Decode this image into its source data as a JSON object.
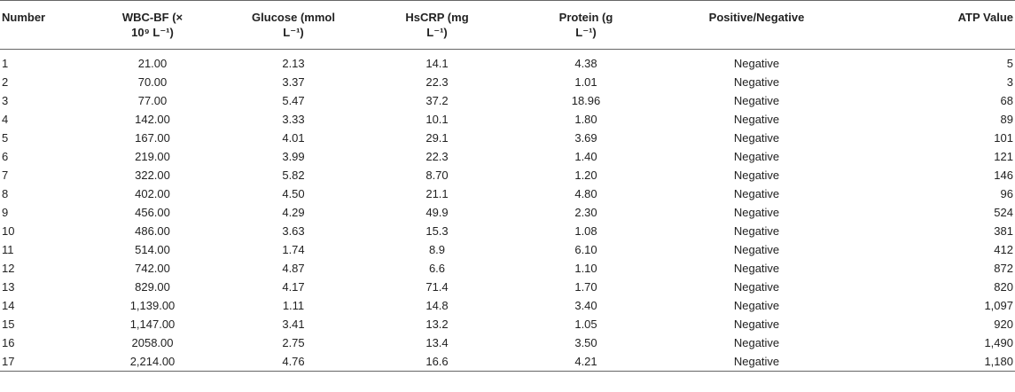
{
  "table": {
    "headers": [
      {
        "line1": "Number",
        "line2": ""
      },
      {
        "line1": "WBC-BF (×",
        "line2": "10⁹ L⁻¹)"
      },
      {
        "line1": "Glucose (mmol",
        "line2": "L⁻¹)"
      },
      {
        "line1": "HsCRP (mg",
        "line2": "L⁻¹)"
      },
      {
        "line1": "Protein (g",
        "line2": "L⁻¹)"
      },
      {
        "line1": "Positive/Negative",
        "line2": ""
      },
      {
        "line1": "ATP Value",
        "line2": ""
      }
    ],
    "rows": [
      [
        "1",
        "21.00",
        "2.13",
        "14.1",
        "4.38",
        "Negative",
        "5"
      ],
      [
        "2",
        "70.00",
        "3.37",
        "22.3",
        "1.01",
        "Negative",
        "3"
      ],
      [
        "3",
        "77.00",
        "5.47",
        "37.2",
        "18.96",
        "Negative",
        "68"
      ],
      [
        "4",
        "142.00",
        "3.33",
        "10.1",
        "1.80",
        "Negative",
        "89"
      ],
      [
        "5",
        "167.00",
        "4.01",
        "29.1",
        "3.69",
        "Negative",
        "101"
      ],
      [
        "6",
        "219.00",
        "3.99",
        "22.3",
        "1.40",
        "Negative",
        "121"
      ],
      [
        "7",
        "322.00",
        "5.82",
        "8.70",
        "1.20",
        "Negative",
        "146"
      ],
      [
        "8",
        "402.00",
        "4.50",
        "21.1",
        "4.80",
        "Negative",
        "96"
      ],
      [
        "9",
        "456.00",
        "4.29",
        "49.9",
        "2.30",
        "Negative",
        "524"
      ],
      [
        "10",
        "486.00",
        "3.63",
        "15.3",
        "1.08",
        "Negative",
        "381"
      ],
      [
        "11",
        "514.00",
        "1.74",
        "8.9",
        "6.10",
        "Negative",
        "412"
      ],
      [
        "12",
        "742.00",
        "4.87",
        "6.6",
        "1.10",
        "Negative",
        "872"
      ],
      [
        "13",
        "829.00",
        "4.17",
        "71.4",
        "1.70",
        "Negative",
        "820"
      ],
      [
        "14",
        "1,139.00",
        "1.11",
        "14.8",
        "3.40",
        "Negative",
        "1,097"
      ],
      [
        "15",
        "1,147.00",
        "3.41",
        "13.2",
        "1.05",
        "Negative",
        "920"
      ],
      [
        "16",
        "2058.00",
        "2.75",
        "13.4",
        "3.50",
        "Negative",
        "1,490"
      ],
      [
        "17",
        "2,214.00",
        "4.76",
        "16.6",
        "4.21",
        "Negative",
        "1,180"
      ]
    ]
  }
}
